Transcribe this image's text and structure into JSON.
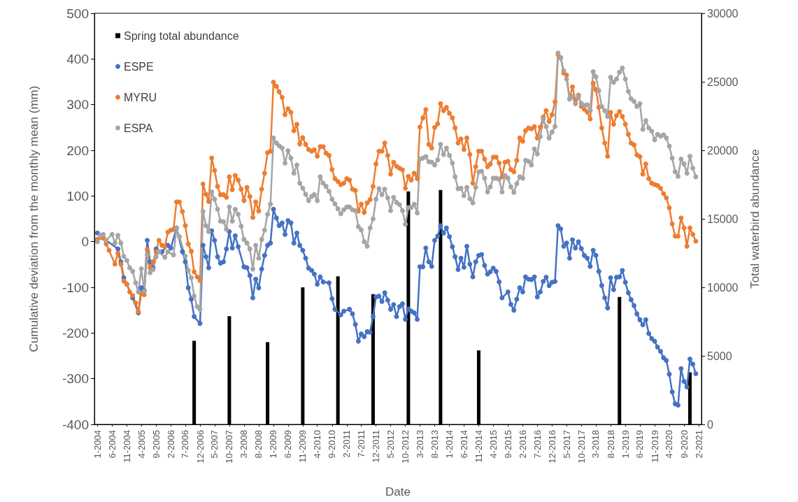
{
  "chart_data": {
    "type": "line",
    "xlabel": "Date",
    "ylabel": "Cumulative deviation from the monthly mean (mm)",
    "y2label": "Total waterbird abundance",
    "xlim": [
      "2003-12",
      "2021-03"
    ],
    "xticks": [
      {
        "value": "2004-01",
        "label": "1-2004"
      },
      {
        "value": "2004-06",
        "label": "6-2004"
      },
      {
        "value": "2004-11",
        "label": "11-2004"
      },
      {
        "value": "2005-04",
        "label": "4-2005"
      },
      {
        "value": "2005-09",
        "label": "9-2005"
      },
      {
        "value": "2006-02",
        "label": "2-2006"
      },
      {
        "value": "2006-07",
        "label": "7-2006"
      },
      {
        "value": "2006-12",
        "label": "12-2006"
      },
      {
        "value": "2007-05",
        "label": "5-2007"
      },
      {
        "value": "2007-10",
        "label": "10-2007"
      },
      {
        "value": "2008-03",
        "label": "3-2008"
      },
      {
        "value": "2008-08",
        "label": "8-2008"
      },
      {
        "value": "2009-01",
        "label": "1-2009"
      },
      {
        "value": "2009-06",
        "label": "6-2009"
      },
      {
        "value": "2009-11",
        "label": "11-2009"
      },
      {
        "value": "2010-04",
        "label": "4-2010"
      },
      {
        "value": "2010-09",
        "label": "9-2010"
      },
      {
        "value": "2011-02",
        "label": "2-2011"
      },
      {
        "value": "2011-07",
        "label": "7-2011"
      },
      {
        "value": "2011-12",
        "label": "12-2011"
      },
      {
        "value": "2012-05",
        "label": "5-2012"
      },
      {
        "value": "2012-10",
        "label": "10-2012"
      },
      {
        "value": "2013-03",
        "label": "3-2013"
      },
      {
        "value": "2013-08",
        "label": "8-2013"
      },
      {
        "value": "2014-01",
        "label": "1-2014"
      },
      {
        "value": "2014-06",
        "label": "6-2014"
      },
      {
        "value": "2014-11",
        "label": "11-2014"
      },
      {
        "value": "2015-04",
        "label": "4-2015"
      },
      {
        "value": "2015-09",
        "label": "9-2015"
      },
      {
        "value": "2016-02",
        "label": "2-2016"
      },
      {
        "value": "2016-07",
        "label": "7-2016"
      },
      {
        "value": "2016-12",
        "label": "12-2016"
      },
      {
        "value": "2017-05",
        "label": "5-2017"
      },
      {
        "value": "2017-10",
        "label": "10-2017"
      },
      {
        "value": "2018-03",
        "label": "3-2018"
      },
      {
        "value": "2018-08",
        "label": "8-2018"
      },
      {
        "value": "2019-01",
        "label": "1-2019"
      },
      {
        "value": "2019-06",
        "label": "6-2019"
      },
      {
        "value": "2019-11",
        "label": "11-2019"
      },
      {
        "value": "2020-04",
        "label": "4-2020"
      },
      {
        "value": "2020-09",
        "label": "9-2020"
      },
      {
        "value": "2021-02",
        "label": "2-2021"
      }
    ],
    "ylim": [
      -400,
      500
    ],
    "yticks": [
      -400,
      -300,
      -200,
      -100,
      0,
      100,
      200,
      300,
      400,
      500
    ],
    "y2lim": [
      0,
      30000
    ],
    "y2ticks": [
      0,
      5000,
      10000,
      15000,
      20000,
      25000,
      30000
    ],
    "legend": "top left",
    "marker": "circle",
    "series": [
      {
        "name": "Spring total abundance",
        "type": "bar",
        "axis": "y2",
        "color": "#000000",
        "x": [
          "2006-10",
          "2007-10",
          "2008-11",
          "2009-11",
          "2010-11",
          "2011-11",
          "2012-11",
          "2013-10",
          "2014-11",
          "2018-11",
          "2020-11"
        ],
        "values": [
          6100,
          7900,
          6000,
          10000,
          10800,
          9500,
          17000,
          17100,
          5400,
          9300,
          3800
        ]
      },
      {
        "name": "ESPE",
        "color": "#4472c4",
        "x": [
          "2004-01",
          "2004-03",
          "2004-08",
          "2004-09",
          "2004-10",
          "2004-11",
          "2005-01",
          "2005-03",
          "2005-04",
          "2005-05",
          "2005-06",
          "2005-07",
          "2005-08",
          "2005-09",
          "2005-11",
          "2006-01",
          "2006-02",
          "2006-04",
          "2006-06",
          "2006-07",
          "2006-08",
          "2006-09",
          "2006-10",
          "2006-12",
          "2007-01",
          "2007-02",
          "2007-03",
          "2007-04",
          "2007-05",
          "2007-06",
          "2007-07",
          "2007-08",
          "2007-09",
          "2007-10",
          "2007-11",
          "2007-12",
          "2008-01",
          "2008-03",
          "2008-04",
          "2008-05",
          "2008-06",
          "2008-07",
          "2008-08",
          "2008-09",
          "2008-10",
          "2008-11",
          "2008-12",
          "2009-01",
          "2009-02",
          "2009-03",
          "2009-04",
          "2009-05",
          "2009-06",
          "2009-07",
          "2009-08",
          "2009-09",
          "2009-10",
          "2009-11",
          "2009-12",
          "2010-01",
          "2010-02",
          "2010-03",
          "2010-04",
          "2010-05",
          "2010-06",
          "2010-08",
          "2010-09",
          "2010-10",
          "2010-12",
          "2011-01",
          "2011-03",
          "2011-04",
          "2011-05",
          "2011-06",
          "2011-07",
          "2011-08",
          "2011-09",
          "2011-10",
          "2011-11",
          "2011-12",
          "2012-01",
          "2012-02",
          "2012-03",
          "2012-04",
          "2012-05",
          "2012-06",
          "2012-07",
          "2012-08",
          "2012-09",
          "2012-10",
          "2012-11",
          "2012-12",
          "2013-01",
          "2013-02",
          "2013-03",
          "2013-04",
          "2013-05",
          "2013-06",
          "2013-07",
          "2013-08",
          "2013-09",
          "2013-10",
          "2013-11",
          "2013-12",
          "2014-01",
          "2014-02",
          "2014-03",
          "2014-04",
          "2014-05",
          "2014-06",
          "2014-07",
          "2014-08",
          "2014-09",
          "2014-10",
          "2014-11",
          "2014-12",
          "2015-01",
          "2015-02",
          "2015-03",
          "2015-04",
          "2015-05",
          "2015-06",
          "2015-07",
          "2015-09",
          "2015-10",
          "2015-11",
          "2015-12",
          "2016-01",
          "2016-02",
          "2016-03",
          "2016-04",
          "2016-05",
          "2016-06",
          "2016-07",
          "2016-08",
          "2016-09",
          "2016-10",
          "2016-11",
          "2016-12",
          "2017-01",
          "2017-02",
          "2017-03",
          "2017-04",
          "2017-05",
          "2017-06",
          "2017-07",
          "2017-08",
          "2017-09",
          "2017-10",
          "2017-11",
          "2017-12",
          "2018-01",
          "2018-02",
          "2018-03",
          "2018-04",
          "2018-05",
          "2018-06",
          "2018-07",
          "2018-08",
          "2018-09",
          "2018-10",
          "2018-11",
          "2018-12",
          "2019-01",
          "2019-02",
          "2019-03",
          "2019-04",
          "2019-05",
          "2019-06",
          "2019-07",
          "2019-08",
          "2019-09",
          "2019-10",
          "2019-11",
          "2019-12",
          "2020-01",
          "2020-02",
          "2020-03",
          "2020-04",
          "2020-05",
          "2020-06",
          "2020-07",
          "2020-08",
          "2020-09",
          "2020-10",
          "2020-11",
          "2020-12",
          "2021-01"
        ],
        "values": [
          19,
          8,
          -16,
          -44,
          -79,
          -93,
          -123,
          -156,
          -101,
          -107,
          3,
          -44,
          -57,
          -16,
          -22,
          -8,
          -14,
          30,
          -22,
          -44,
          -101,
          -126,
          -164,
          -179,
          -8,
          -33,
          -57,
          24,
          3,
          -33,
          -47,
          -44,
          -16,
          22,
          -14,
          13,
          -11,
          -55,
          -57,
          -74,
          -123,
          -82,
          -101,
          -60,
          -30,
          -8,
          -3,
          71,
          52,
          35,
          41,
          16,
          46,
          41,
          -3,
          19,
          -8,
          -19,
          -36,
          -58,
          -63,
          -71,
          -93,
          -77,
          -88,
          -90,
          -125,
          -148,
          -160,
          -152,
          -148,
          -158,
          -181,
          -218,
          -202,
          -208,
          -197,
          -198,
          -164,
          -121,
          -119,
          -131,
          -112,
          -128,
          -148,
          -138,
          -164,
          -142,
          -136,
          -170,
          -147,
          -152,
          -156,
          -170,
          -55,
          -55,
          -14,
          -44,
          -54,
          3,
          12,
          35,
          19,
          30,
          11,
          -11,
          -33,
          -61,
          -36,
          -56,
          -10,
          -49,
          -77,
          -44,
          -30,
          -28,
          -52,
          -71,
          -66,
          -58,
          -65,
          -88,
          -123,
          -110,
          -137,
          -150,
          -126,
          -101,
          -110,
          -77,
          -82,
          -83,
          -77,
          -121,
          -110,
          -87,
          -78,
          -96,
          -89,
          -87,
          35,
          28,
          -10,
          -3,
          -36,
          4,
          -14,
          0,
          -15,
          -30,
          -36,
          -54,
          -19,
          -30,
          -65,
          -96,
          -123,
          -145,
          -79,
          -105,
          -78,
          -77,
          -63,
          -89,
          -112,
          -127,
          -140,
          -158,
          -171,
          -182,
          -171,
          -201,
          -212,
          -218,
          -231,
          -240,
          -254,
          -260,
          -290,
          -329,
          -355,
          -358,
          -278,
          -306,
          -318,
          -257,
          -268,
          -289
        ]
      },
      {
        "name": "MYRU",
        "color": "#ed7d31",
        "x": [
          "2004-01",
          "2004-03",
          "2004-04",
          "2004-05",
          "2004-07",
          "2004-08",
          "2004-09",
          "2004-10",
          "2004-11",
          "2004-12",
          "2005-01",
          "2005-02",
          "2005-03",
          "2005-04",
          "2005-05",
          "2005-06",
          "2005-07",
          "2005-08",
          "2005-09",
          "2005-10",
          "2005-11",
          "2005-12",
          "2006-01",
          "2006-02",
          "2006-03",
          "2006-04",
          "2006-05",
          "2006-06",
          "2006-07",
          "2006-08",
          "2006-09",
          "2006-10",
          "2006-11",
          "2006-12",
          "2007-01",
          "2007-02",
          "2007-03",
          "2007-04",
          "2007-05",
          "2007-06",
          "2007-07",
          "2007-08",
          "2007-09",
          "2007-10",
          "2007-11",
          "2007-12",
          "2008-01",
          "2008-02",
          "2008-03",
          "2008-04",
          "2008-05",
          "2008-06",
          "2008-07",
          "2008-08",
          "2008-09",
          "2008-10",
          "2008-11",
          "2008-12",
          "2009-01",
          "2009-02",
          "2009-03",
          "2009-04",
          "2009-05",
          "2009-06",
          "2009-07",
          "2009-08",
          "2009-09",
          "2009-10",
          "2009-11",
          "2009-12",
          "2010-01",
          "2010-02",
          "2010-03",
          "2010-04",
          "2010-05",
          "2010-06",
          "2010-07",
          "2010-08",
          "2010-09",
          "2010-10",
          "2010-11",
          "2010-12",
          "2011-01",
          "2011-02",
          "2011-03",
          "2011-04",
          "2011-05",
          "2011-06",
          "2011-07",
          "2011-08",
          "2011-09",
          "2011-10",
          "2011-11",
          "2011-12",
          "2012-01",
          "2012-02",
          "2012-03",
          "2012-04",
          "2012-05",
          "2012-06",
          "2012-07",
          "2012-08",
          "2012-09",
          "2012-10",
          "2012-11",
          "2012-12",
          "2013-01",
          "2013-02",
          "2013-03",
          "2013-04",
          "2013-05",
          "2013-06",
          "2013-07",
          "2013-08",
          "2013-09",
          "2013-10",
          "2013-11",
          "2013-12",
          "2014-01",
          "2014-02",
          "2014-03",
          "2014-04",
          "2014-05",
          "2014-06",
          "2014-07",
          "2014-08",
          "2014-09",
          "2014-10",
          "2014-11",
          "2014-12",
          "2015-01",
          "2015-02",
          "2015-03",
          "2015-04",
          "2015-05",
          "2015-06",
          "2015-07",
          "2015-08",
          "2015-09",
          "2015-10",
          "2015-11",
          "2015-12",
          "2016-01",
          "2016-02",
          "2016-03",
          "2016-04",
          "2016-05",
          "2016-06",
          "2016-07",
          "2016-08",
          "2016-09",
          "2016-10",
          "2016-11",
          "2016-12",
          "2017-01",
          "2017-02",
          "2017-03",
          "2017-04",
          "2017-05",
          "2017-06",
          "2017-07",
          "2017-08",
          "2017-09",
          "2017-10",
          "2017-11",
          "2017-12",
          "2018-01",
          "2018-02",
          "2018-03",
          "2018-04",
          "2018-05",
          "2018-06",
          "2018-07",
          "2018-08",
          "2018-09",
          "2018-10",
          "2018-11",
          "2018-12",
          "2019-01",
          "2019-02",
          "2019-03",
          "2019-04",
          "2019-05",
          "2019-06",
          "2019-07",
          "2019-08",
          "2019-09",
          "2019-10",
          "2019-11",
          "2019-12",
          "2020-01",
          "2020-02",
          "2020-03",
          "2020-04",
          "2020-05",
          "2020-06",
          "2020-07",
          "2020-08",
          "2020-09",
          "2020-10",
          "2020-11",
          "2020-12",
          "2021-01"
        ],
        "values": [
          5,
          8,
          -5,
          -19,
          -49,
          -25,
          -49,
          -86,
          -93,
          -110,
          -118,
          -134,
          -153,
          -114,
          -116,
          -17,
          -57,
          -44,
          -22,
          3,
          -8,
          -11,
          21,
          25,
          27,
          87,
          87,
          66,
          35,
          -5,
          -21,
          -66,
          -77,
          -85,
          126,
          104,
          88,
          183,
          156,
          121,
          103,
          103,
          97,
          142,
          114,
          145,
          135,
          115,
          90,
          119,
          99,
          53,
          87,
          67,
          115,
          150,
          195,
          198,
          349,
          340,
          328,
          316,
          278,
          291,
          283,
          243,
          257,
          214,
          228,
          213,
          202,
          198,
          201,
          187,
          208,
          208,
          194,
          189,
          158,
          138,
          132,
          125,
          128,
          138,
          135,
          115,
          112,
          67,
          82,
          64,
          85,
          92,
          121,
          170,
          198,
          198,
          216,
          189,
          148,
          174,
          165,
          161,
          157,
          117,
          143,
          135,
          150,
          138,
          251,
          271,
          289,
          213,
          205,
          250,
          258,
          302,
          287,
          294,
          281,
          271,
          249,
          216,
          225,
          202,
          227,
          191,
          128,
          164,
          198,
          198,
          181,
          164,
          170,
          185,
          185,
          172,
          142,
          174,
          176,
          158,
          153,
          178,
          227,
          220,
          243,
          249,
          247,
          252,
          227,
          251,
          273,
          287,
          263,
          278,
          306,
          410,
          403,
          369,
          365,
          313,
          339,
          309,
          321,
          296,
          290,
          284,
          269,
          347,
          333,
          294,
          249,
          216,
          187,
          283,
          257,
          276,
          285,
          274,
          257,
          235,
          216,
          212,
          190,
          186,
          148,
          170,
          138,
          128,
          125,
          123,
          117,
          105,
          96,
          74,
          39,
          12,
          12,
          52,
          30,
          -10,
          30,
          16,
          1
        ]
      },
      {
        "name": "ESPA",
        "color": "#a5a5a5",
        "x": [
          "2004-01",
          "2004-02",
          "2004-03",
          "2004-04",
          "2004-06",
          "2004-07",
          "2004-08",
          "2004-09",
          "2004-10",
          "2004-11",
          "2004-12",
          "2005-01",
          "2005-02",
          "2005-03",
          "2005-04",
          "2005-05",
          "2005-06",
          "2005-07",
          "2005-08",
          "2005-09",
          "2005-10",
          "2005-12",
          "2006-01",
          "2006-03",
          "2006-04",
          "2006-05",
          "2006-07",
          "2006-08",
          "2006-09",
          "2006-10",
          "2006-11",
          "2006-12",
          "2007-01",
          "2007-02",
          "2007-03",
          "2007-04",
          "2007-05",
          "2007-06",
          "2007-07",
          "2007-08",
          "2007-09",
          "2007-10",
          "2007-11",
          "2007-12",
          "2008-01",
          "2008-02",
          "2008-03",
          "2008-04",
          "2008-05",
          "2008-06",
          "2008-07",
          "2008-08",
          "2008-09",
          "2008-10",
          "2008-11",
          "2008-12",
          "2009-01",
          "2009-02",
          "2009-03",
          "2009-04",
          "2009-05",
          "2009-06",
          "2009-07",
          "2009-08",
          "2009-09",
          "2009-10",
          "2009-11",
          "2009-12",
          "2010-01",
          "2010-02",
          "2010-03",
          "2010-04",
          "2010-05",
          "2010-06",
          "2010-07",
          "2010-08",
          "2010-09",
          "2010-10",
          "2010-11",
          "2010-12",
          "2011-01",
          "2011-02",
          "2011-03",
          "2011-04",
          "2011-05",
          "2011-06",
          "2011-07",
          "2011-08",
          "2011-09",
          "2011-10",
          "2011-11",
          "2011-12",
          "2012-01",
          "2012-02",
          "2012-03",
          "2012-04",
          "2012-05",
          "2012-06",
          "2012-07",
          "2012-08",
          "2012-09",
          "2012-10",
          "2012-11",
          "2012-12",
          "2013-01",
          "2013-02",
          "2013-03",
          "2013-04",
          "2013-05",
          "2013-06",
          "2013-07",
          "2013-08",
          "2013-09",
          "2013-10",
          "2013-11",
          "2013-12",
          "2014-01",
          "2014-02",
          "2014-03",
          "2014-04",
          "2014-05",
          "2014-06",
          "2014-07",
          "2014-08",
          "2014-09",
          "2014-10",
          "2014-11",
          "2014-12",
          "2015-01",
          "2015-02",
          "2015-03",
          "2015-04",
          "2015-05",
          "2015-06",
          "2015-07",
          "2015-08",
          "2015-09",
          "2015-10",
          "2015-11",
          "2015-12",
          "2016-01",
          "2016-02",
          "2016-03",
          "2016-04",
          "2016-05",
          "2016-06",
          "2016-07",
          "2016-08",
          "2016-09",
          "2016-10",
          "2016-11",
          "2016-12",
          "2017-01",
          "2017-02",
          "2017-03",
          "2017-04",
          "2017-05",
          "2017-06",
          "2017-07",
          "2017-08",
          "2017-09",
          "2017-10",
          "2017-11",
          "2017-12",
          "2018-01",
          "2018-02",
          "2018-03",
          "2018-04",
          "2018-05",
          "2018-06",
          "2018-07",
          "2018-08",
          "2018-09",
          "2018-10",
          "2018-11",
          "2018-12",
          "2019-01",
          "2019-02",
          "2019-03",
          "2019-04",
          "2019-05",
          "2019-06",
          "2019-07",
          "2019-08",
          "2019-09",
          "2019-10",
          "2019-11",
          "2019-12",
          "2020-01",
          "2020-02",
          "2020-03",
          "2020-04",
          "2020-05",
          "2020-06",
          "2020-07",
          "2020-08",
          "2020-09",
          "2020-10",
          "2020-11",
          "2020-12",
          "2021-01"
        ],
        "values": [
          0,
          14,
          16,
          3,
          16,
          -3,
          14,
          -3,
          -32,
          -41,
          -57,
          -65,
          -90,
          -110,
          -59,
          -108,
          -29,
          -68,
          -61,
          -33,
          -22,
          -34,
          -22,
          -29,
          30,
          11,
          -32,
          -63,
          -79,
          -119,
          -142,
          -148,
          66,
          35,
          22,
          109,
          93,
          71,
          45,
          44,
          27,
          76,
          45,
          71,
          60,
          34,
          5,
          -3,
          -16,
          -60,
          -8,
          -36,
          5,
          25,
          60,
          82,
          227,
          216,
          210,
          205,
          172,
          199,
          183,
          150,
          168,
          128,
          117,
          104,
          90,
          99,
          103,
          90,
          142,
          128,
          121,
          110,
          93,
          83,
          72,
          61,
          70,
          76,
          76,
          70,
          68,
          33,
          26,
          0,
          -10,
          30,
          50,
          93,
          116,
          103,
          115,
          96,
          68,
          97,
          86,
          81,
          68,
          38,
          75,
          75,
          82,
          63,
          181,
          183,
          186,
          175,
          174,
          168,
          179,
          213,
          191,
          205,
          189,
          172,
          142,
          116,
          117,
          101,
          119,
          94,
          85,
          119,
          153,
          154,
          139,
          109,
          120,
          139,
          139,
          137,
          109,
          145,
          139,
          120,
          108,
          127,
          142,
          139,
          178,
          176,
          168,
          203,
          192,
          230,
          268,
          252,
          227,
          240,
          252,
          413,
          402,
          374,
          356,
          312,
          318,
          302,
          318,
          303,
          298,
          300,
          287,
          372,
          361,
          331,
          296,
          287,
          274,
          360,
          349,
          356,
          371,
          380,
          356,
          329,
          313,
          307,
          296,
          302,
          246,
          265,
          249,
          242,
          223,
          235,
          231,
          234,
          227,
          209,
          183,
          153,
          143,
          181,
          170,
          150,
          187,
          161,
          142
        ]
      }
    ]
  }
}
